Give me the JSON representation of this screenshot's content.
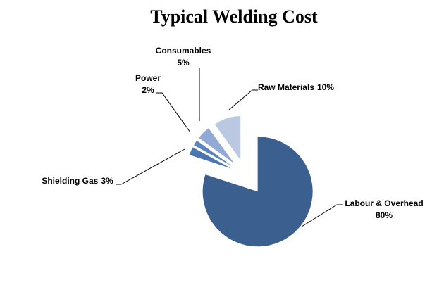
{
  "chart_data": {
    "type": "pie",
    "title": "Typical Welding Cost",
    "categories": [
      "Labour & Overhead",
      "Shielding Gas",
      "Power",
      "Consumables",
      "Raw Materials"
    ],
    "values": [
      80,
      3,
      2,
      5,
      10
    ],
    "value_labels": [
      "80%",
      "3%",
      "2%",
      "5%",
      "10%"
    ],
    "colors": [
      "#3b5f8f",
      "#4a75ae",
      "#5a84bb",
      "#91a9d4",
      "#bac8e2"
    ]
  }
}
